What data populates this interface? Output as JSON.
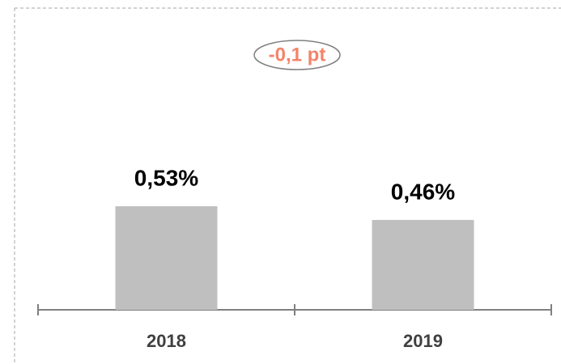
{
  "chart_data": {
    "type": "bar",
    "categories": [
      "2018",
      "2019"
    ],
    "values": [
      0.53,
      0.46
    ],
    "value_labels": [
      "0,53%",
      "0,46%"
    ],
    "color": "#bfbfbf",
    "annotation": "-0,1 pt"
  }
}
